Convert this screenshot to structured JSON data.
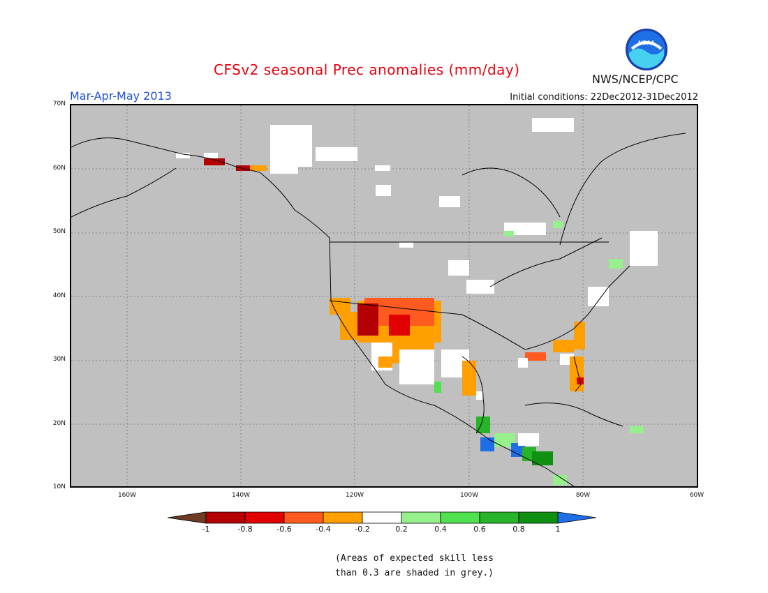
{
  "title": "CFSv2 seasonal Prec anomalies (mm/day)",
  "season": "Mar-Apr-May 2013",
  "initial_conditions": "Initial conditions: 22Dec2012-31Dec2012",
  "agency": "NWS/NCEP/CPC",
  "logo_text": "NOAA",
  "lat_labels": [
    "70N",
    "60N",
    "50N",
    "40N",
    "30N",
    "20N",
    "10N"
  ],
  "lon_labels": [
    "160W",
    "140W",
    "120W",
    "100W",
    "80W",
    "60W"
  ],
  "colorbar": {
    "ticks": [
      "-1",
      "-0.8",
      "-0.6",
      "-0.4",
      "-0.2",
      "0.2",
      "0.4",
      "0.6",
      "0.8",
      "1"
    ],
    "colors": [
      "#6e3b23",
      "#b40000",
      "#e00000",
      "#ff5a1f",
      "#ff9f00",
      "#ffffff",
      "#96f08c",
      "#50e050",
      "#28b428",
      "#109010",
      "#1e6ee6"
    ]
  },
  "note_lines": [
    "(Areas of expected skill less",
    "than 0.3 are shaded in grey.)"
  ],
  "colors": {
    "title": "#e8000b",
    "season": "#1f4fd8",
    "map_background": "#c0c0c0"
  }
}
